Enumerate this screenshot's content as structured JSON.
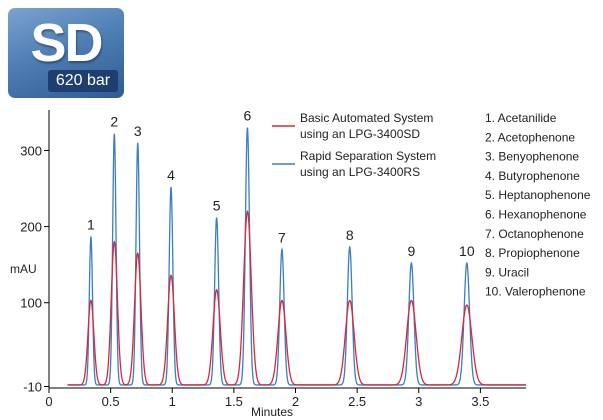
{
  "logo": {
    "main_text": "SD",
    "sub_text": "620 bar"
  },
  "chart_data": {
    "type": "line",
    "xlabel": "Minutes",
    "ylabel": "mAU",
    "xlim": [
      0,
      3.87
    ],
    "ylim": [
      -12,
      340
    ],
    "x_ticks": [
      0,
      0.5,
      1,
      1.5,
      2,
      2.5,
      3,
      3.5
    ],
    "x_tick_labels": [
      "0",
      "0.5",
      "1",
      "1.5",
      "2",
      "2.5",
      "3",
      "3.5"
    ],
    "y_ticks": [
      -10,
      100,
      200,
      300
    ],
    "y_tick_labels": [
      "-10",
      "100",
      "200",
      "300"
    ],
    "baseline": -8,
    "peaks": [
      {
        "label": "1",
        "time": 0.34,
        "sd_height": 103,
        "rs_height": 187
      },
      {
        "label": "2",
        "time": 0.53,
        "sd_height": 180,
        "rs_height": 322
      },
      {
        "label": "3",
        "time": 0.72,
        "sd_height": 165,
        "rs_height": 310
      },
      {
        "label": "4",
        "time": 0.99,
        "sd_height": 136,
        "rs_height": 252
      },
      {
        "label": "5",
        "time": 1.36,
        "sd_height": 117,
        "rs_height": 212
      },
      {
        "label": "6",
        "time": 1.61,
        "sd_height": 220,
        "rs_height": 330
      },
      {
        "label": "7",
        "time": 1.89,
        "sd_height": 103,
        "rs_height": 170
      },
      {
        "label": "8",
        "time": 2.44,
        "sd_height": 103,
        "rs_height": 173
      },
      {
        "label": "9",
        "time": 2.94,
        "sd_height": 103,
        "rs_height": 152
      },
      {
        "label": "10",
        "time": 3.39,
        "sd_height": 97,
        "rs_height": 152
      }
    ],
    "series": [
      {
        "name": "Basic Automated System using an LPG-3400SD",
        "line1": "Basic Automated System",
        "line2": "using an LPG-3400SD",
        "color": "#d8283c",
        "key": "sd_height",
        "width_min": 0.022
      },
      {
        "name": "Rapid Separation System using an LPG-3400RS",
        "line1": "Rapid Separation System",
        "line2": "using an LPG-3400RS",
        "color": "#3a7fc1",
        "key": "rs_height",
        "width_min": 0.012
      }
    ],
    "compounds": [
      "1. Acetanilide",
      "2. Acetophenone",
      "3. Benyophenone",
      "4. Butyrophenone",
      "5. Heptanophenone",
      "6. Hexanophenone",
      "7. Octanophenone",
      "8. Propiophenone",
      "9. Uracil",
      "10. Valerophenone"
    ]
  }
}
